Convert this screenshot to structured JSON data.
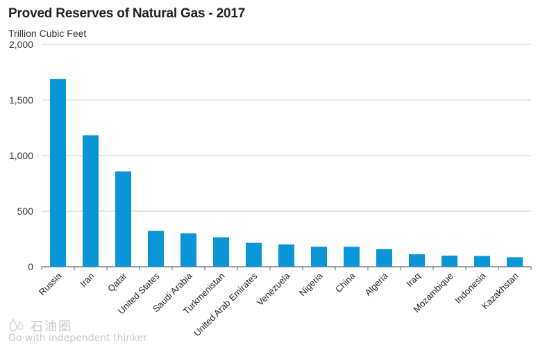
{
  "chart_data": {
    "type": "bar",
    "title": "Proved Reserves of Natural Gas - 2017",
    "subtitle": "Trillion Cubic Feet",
    "xlabel": "",
    "ylabel": "",
    "ylim": [
      0,
      2000
    ],
    "yticks": [
      0,
      500,
      1000,
      1500,
      2000
    ],
    "ytick_labels": [
      "0",
      "500",
      "1,000",
      "1,500",
      "2,000"
    ],
    "grid": true,
    "legend": "none",
    "bar_color": "#0a96d6",
    "categories": [
      "Russia",
      "Iran",
      "Qatar",
      "United States",
      "Saudi Arabia",
      "Turkmenistan",
      "United Arab Emirates",
      "Venezuela",
      "Nigeria",
      "China",
      "Algeria",
      "Iraq",
      "Mozambique",
      "Indonesia",
      "Kazakhstan"
    ],
    "values": [
      1688,
      1183,
      858,
      323,
      300,
      265,
      215,
      201,
      180,
      180,
      159,
      112,
      100,
      97,
      85
    ]
  },
  "watermark": {
    "name": "石油圈",
    "slogan": "Go with independent thinker",
    "logo_icon": "oil-drop-logo-icon"
  }
}
